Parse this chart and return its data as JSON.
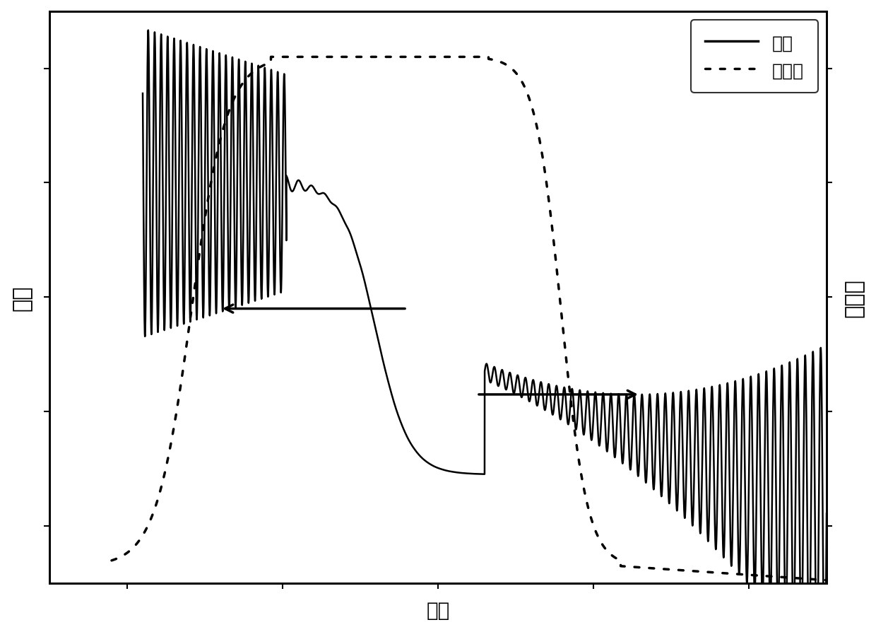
{
  "xlabel": "波长",
  "ylabel_left": "时延",
  "ylabel_right": "反射率",
  "legend_solid": "时延",
  "legend_dotted": "反射率",
  "background_color": "#ffffff",
  "figsize": [
    12.4,
    8.95
  ],
  "dpi": 100
}
